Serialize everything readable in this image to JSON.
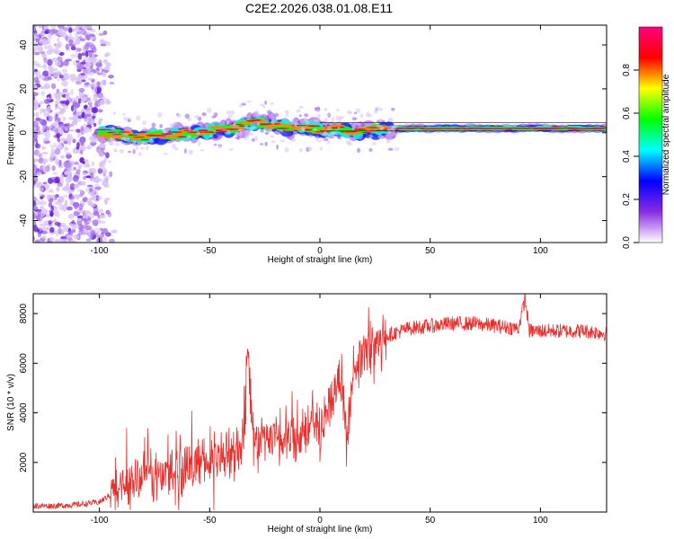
{
  "figure": {
    "title": "C2E2.2026.038.01.08.E11"
  },
  "chart_data": [
    {
      "type": "heatmap",
      "xlabel": "Height of straight line (km)",
      "ylabel": "Frequency (Hz)",
      "xlim": [
        -130,
        130
      ],
      "ylim": [
        -50,
        49
      ],
      "xticks": [
        -100,
        -50,
        0,
        50,
        100
      ],
      "yticks": [
        -40,
        -20,
        0,
        20,
        40
      ],
      "grid": false,
      "colorbar": {
        "label": "Normalized spectral amplitude",
        "range": [
          0,
          1
        ],
        "ticks": [
          "0.0",
          "0.2",
          "0.4",
          "0.6",
          "0.8"
        ],
        "colors": [
          "#ffffff",
          "#8a2be2",
          "#0000ff",
          "#00ffff",
          "#00ff00",
          "#ffff00",
          "#ff0000",
          "#ff0080"
        ]
      },
      "noise_region_x": [
        -130,
        -93
      ],
      "ridge": {
        "x": [
          -100,
          -90,
          -80,
          -70,
          -60,
          -50,
          -40,
          -35,
          -30,
          -25,
          -20,
          -15,
          -10,
          -5,
          0,
          5,
          10,
          15,
          20,
          25,
          30,
          40,
          50,
          60,
          70,
          80,
          90,
          100,
          110,
          120,
          130
        ],
        "frequency": [
          0,
          -1,
          -2,
          -1,
          0,
          1,
          2,
          4,
          5,
          4,
          3,
          2,
          2,
          2,
          1,
          2,
          1,
          0,
          1,
          1,
          2,
          2,
          2,
          2,
          2,
          2,
          2,
          2,
          2,
          2,
          2
        ]
      }
    },
    {
      "type": "line",
      "xlabel": "Height of straight line (km)",
      "ylabel": "SNR (10 * v/v)",
      "xlim": [
        -130,
        130
      ],
      "ylim": [
        0,
        8800
      ],
      "xticks": [
        -100,
        -50,
        0,
        50,
        100
      ],
      "yticks": [
        2000,
        4000,
        6000,
        8000
      ],
      "grid": false,
      "series": [
        {
          "color": "#e8302e",
          "x": [
            -130,
            -120,
            -110,
            -100,
            -95,
            -90,
            -85,
            -80,
            -75,
            -70,
            -65,
            -60,
            -55,
            -50,
            -45,
            -40,
            -35,
            -33,
            -30,
            -25,
            -20,
            -15,
            -10,
            -5,
            0,
            5,
            10,
            12,
            15,
            20,
            25,
            30,
            40,
            50,
            60,
            70,
            80,
            90,
            93,
            95,
            100,
            110,
            120,
            130
          ],
          "y": [
            250,
            250,
            300,
            400,
            700,
            1100,
            1300,
            1500,
            1500,
            1600,
            1700,
            1800,
            2000,
            2000,
            2300,
            2300,
            2600,
            6800,
            2700,
            2900,
            2900,
            3000,
            3200,
            3400,
            3500,
            4500,
            5600,
            2400,
            5800,
            6300,
            6700,
            7100,
            7400,
            7500,
            7600,
            7600,
            7500,
            7400,
            8600,
            7300,
            7300,
            7300,
            7300,
            7200
          ]
        }
      ],
      "noise_amplitude": 1100
    }
  ]
}
